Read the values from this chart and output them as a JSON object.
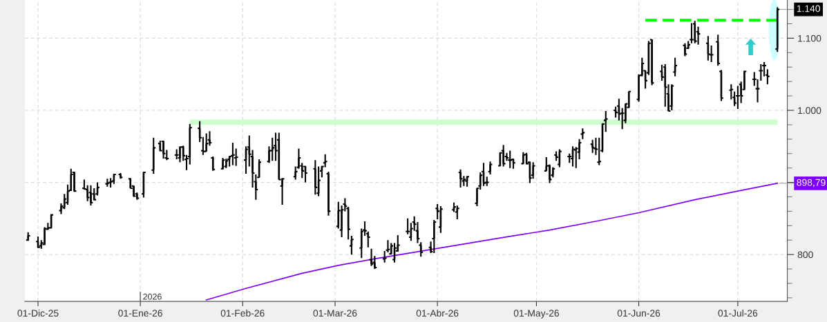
{
  "chart_data": {
    "type": "candlestick",
    "x": [
      "2025-11-28",
      "2025-12-01",
      "2025-12-02",
      "2025-12-03",
      "2025-12-04",
      "2025-12-05",
      "2025-12-08",
      "2025-12-09",
      "2025-12-10",
      "2025-12-11",
      "2025-12-12",
      "2025-12-15",
      "2025-12-16",
      "2025-12-17",
      "2025-12-18",
      "2025-12-19",
      "2025-12-22",
      "2025-12-23",
      "2025-12-24",
      "2025-12-26",
      "2025-12-29",
      "2025-12-30",
      "2025-12-31",
      "2026-01-02",
      "2026-01-05",
      "2026-01-07",
      "2026-01-08",
      "2026-01-09",
      "2026-01-12",
      "2026-01-13",
      "2026-01-14",
      "2026-01-15",
      "2026-01-16",
      "2026-01-19",
      "2026-01-20",
      "2026-01-21",
      "2026-01-22",
      "2026-01-23",
      "2026-01-26",
      "2026-01-27",
      "2026-01-28",
      "2026-01-29",
      "2026-01-30",
      "2026-02-02",
      "2026-02-03",
      "2026-02-04",
      "2026-02-05",
      "2026-02-06",
      "2026-02-09",
      "2026-02-10",
      "2026-02-11",
      "2026-02-12",
      "2026-02-13",
      "2026-02-17",
      "2026-02-18",
      "2026-02-19",
      "2026-02-20",
      "2026-02-23",
      "2026-02-24",
      "2026-02-25",
      "2026-02-26",
      "2026-02-27",
      "2026-03-02",
      "2026-03-03",
      "2026-03-04",
      "2026-03-05",
      "2026-03-06",
      "2026-03-09",
      "2026-03-10",
      "2026-03-11",
      "2026-03-12",
      "2026-03-13",
      "2026-03-16",
      "2026-03-17",
      "2026-03-18",
      "2026-03-19",
      "2026-03-20",
      "2026-03-23",
      "2026-03-24",
      "2026-03-25",
      "2026-03-26",
      "2026-03-27",
      "2026-03-30",
      "2026-03-31",
      "2026-04-01",
      "2026-04-02",
      "2026-04-06",
      "2026-04-07",
      "2026-04-08",
      "2026-04-09",
      "2026-04-10",
      "2026-04-13",
      "2026-04-14",
      "2026-04-15",
      "2026-04-16",
      "2026-04-17",
      "2026-04-20",
      "2026-04-21",
      "2026-04-22",
      "2026-04-23",
      "2026-04-24",
      "2026-04-27",
      "2026-04-28",
      "2026-04-29",
      "2026-04-30",
      "2026-05-04",
      "2026-05-05",
      "2026-05-06",
      "2026-05-07",
      "2026-05-08",
      "2026-05-11",
      "2026-05-12",
      "2026-05-13",
      "2026-05-14",
      "2026-05-15",
      "2026-05-18",
      "2026-05-19",
      "2026-05-20",
      "2026-05-21",
      "2026-05-22",
      "2026-05-25",
      "2026-05-26",
      "2026-05-27",
      "2026-05-28",
      "2026-05-29",
      "2026-06-01",
      "2026-06-02",
      "2026-06-03",
      "2026-06-04",
      "2026-06-05",
      "2026-06-08",
      "2026-06-09",
      "2026-06-10",
      "2026-06-11",
      "2026-06-12",
      "2026-06-15",
      "2026-06-16",
      "2026-06-17",
      "2026-06-18",
      "2026-06-19",
      "2026-06-22",
      "2026-06-23",
      "2026-06-25",
      "2026-06-26",
      "2026-06-29",
      "2026-06-30",
      "2026-07-01",
      "2026-07-02",
      "2026-07-03",
      "2026-07-06",
      "2026-07-07",
      "2026-07-08",
      "2026-07-09",
      "2026-07-10",
      "2026-07-13"
    ],
    "ohlc": [
      [
        820,
        831,
        819,
        826
      ],
      [
        818,
        825,
        809,
        810
      ],
      [
        812,
        820,
        808,
        816
      ],
      [
        814,
        838,
        813,
        836
      ],
      [
        835,
        844,
        834,
        837
      ],
      [
        837,
        856,
        836,
        855
      ],
      [
        861,
        871,
        856,
        867
      ],
      [
        865,
        884,
        863,
        877
      ],
      [
        872,
        897,
        869,
        888
      ],
      [
        889,
        919,
        888,
        911
      ],
      [
        914,
        915,
        887,
        888
      ],
      [
        892,
        904,
        890,
        891
      ],
      [
        890,
        896,
        874,
        879
      ],
      [
        886,
        896,
        868,
        872
      ],
      [
        884,
        892,
        875,
        876
      ],
      [
        884,
        900,
        882,
        893
      ],
      [
        898,
        905,
        894,
        899
      ],
      [
        900,
        906,
        893,
        901
      ],
      [
        902,
        912,
        898,
        911
      ],
      [
        911,
        913,
        905,
        907
      ],
      [
        905,
        906,
        892,
        892
      ],
      [
        895,
        895,
        880,
        881
      ],
      [
        884,
        886,
        876,
        878
      ],
      [
        884,
        915,
        879,
        914
      ],
      [
        917,
        962,
        912,
        948
      ],
      [
        954,
        958,
        943,
        944
      ],
      [
        957,
        958,
        933,
        940
      ],
      [
        934,
        945,
        931,
        933
      ],
      [
        938,
        946,
        932,
        938
      ],
      [
        934,
        950,
        928,
        949
      ],
      [
        949,
        951,
        930,
        937
      ],
      [
        932,
        938,
        917,
        933
      ],
      [
        936,
        981,
        925,
        976
      ],
      [
        975,
        985,
        956,
        962
      ],
      [
        944,
        963,
        938,
        943
      ],
      [
        943,
        968,
        943,
        954
      ],
      [
        959,
        971,
        951,
        955
      ],
      [
        934,
        936,
        916,
        918
      ],
      [
        919,
        934,
        918,
        931
      ],
      [
        922,
        933,
        920,
        930
      ],
      [
        932,
        937,
        922,
        936
      ],
      [
        937,
        955,
        924,
        938
      ],
      [
        934,
        947,
        923,
        935
      ],
      [
        931,
        950,
        912,
        946
      ],
      [
        949,
        965,
        922,
        939
      ],
      [
        936,
        945,
        893,
        913
      ],
      [
        901,
        911,
        876,
        890
      ],
      [
        907,
        932,
        907,
        928
      ],
      [
        929,
        950,
        927,
        944
      ],
      [
        944,
        962,
        930,
        948
      ],
      [
        951,
        969,
        930,
        944
      ],
      [
        959,
        969,
        904,
        904
      ],
      [
        895,
        906,
        869,
        905
      ],
      [
        908,
        922,
        904,
        915
      ],
      [
        921,
        947,
        919,
        934
      ],
      [
        923,
        927,
        906,
        916
      ],
      [
        922,
        923,
        900,
        913
      ],
      [
        919,
        931,
        883,
        893
      ],
      [
        885,
        922,
        881,
        903
      ],
      [
        916,
        923,
        907,
        922
      ],
      [
        927,
        939,
        921,
        929
      ],
      [
        912,
        915,
        854,
        860
      ],
      [
        839,
        873,
        836,
        861
      ],
      [
        834,
        868,
        824,
        862
      ],
      [
        870,
        878,
        860,
        867
      ],
      [
        864,
        866,
        821,
        835
      ],
      [
        812,
        826,
        800,
        821
      ],
      [
        809,
        836,
        795,
        832
      ],
      [
        834,
        846,
        826,
        833
      ],
      [
        829,
        832,
        810,
        824
      ],
      [
        793,
        808,
        784,
        787
      ],
      [
        789,
        798,
        780,
        782
      ],
      [
        794,
        805,
        789,
        795
      ],
      [
        806,
        820,
        803,
        807
      ],
      [
        801,
        816,
        800,
        812
      ],
      [
        793,
        816,
        789,
        809
      ],
      [
        805,
        827,
        804,
        813
      ],
      [
        832,
        850,
        828,
        832
      ],
      [
        824,
        844,
        819,
        836
      ],
      [
        845,
        853,
        833,
        842
      ],
      [
        833,
        845,
        816,
        822
      ],
      [
        813,
        817,
        797,
        803
      ],
      [
        810,
        818,
        802,
        804
      ],
      [
        822,
        848,
        802,
        845
      ],
      [
        864,
        870,
        849,
        860
      ],
      [
        838,
        867,
        830,
        863
      ],
      [
        862,
        872,
        859,
        866
      ],
      [
        859,
        868,
        849,
        864
      ],
      [
        914,
        918,
        893,
        905
      ],
      [
        902,
        909,
        895,
        904
      ],
      [
        902,
        909,
        894,
        908
      ],
      [
        871,
        892,
        867,
        892
      ],
      [
        895,
        914,
        890,
        910
      ],
      [
        915,
        927,
        895,
        899
      ],
      [
        900,
        908,
        895,
        900
      ],
      [
        915,
        929,
        911,
        925
      ],
      [
        923,
        942,
        923,
        941
      ],
      [
        944,
        952,
        922,
        926
      ],
      [
        936,
        941,
        930,
        934
      ],
      [
        931,
        944,
        920,
        931
      ],
      [
        932,
        933,
        919,
        927
      ],
      [
        926,
        942,
        926,
        938
      ],
      [
        939,
        941,
        925,
        926
      ],
      [
        928,
        929,
        899,
        906
      ],
      [
        910,
        928,
        905,
        923
      ],
      [
        916,
        935,
        916,
        923
      ],
      [
        923,
        925,
        899,
        904
      ],
      [
        910,
        921,
        907,
        919
      ],
      [
        938,
        943,
        930,
        935
      ],
      [
        925,
        946,
        921,
        943
      ],
      [
        936,
        940,
        927,
        936
      ],
      [
        933,
        950,
        922,
        946
      ],
      [
        945,
        949,
        920,
        947
      ],
      [
        942,
        960,
        932,
        955
      ],
      [
        967,
        975,
        960,
        969
      ],
      [
        953,
        959,
        941,
        948
      ],
      [
        947,
        962,
        938,
        946
      ],
      [
        928,
        962,
        924,
        929
      ],
      [
        944,
        982,
        942,
        981
      ],
      [
        986,
        999,
        970,
        988
      ],
      [
        1000,
        1005,
        990,
        997
      ],
      [
        1006,
        1016,
        986,
        995
      ],
      [
        996,
        1003,
        974,
        996
      ],
      [
        986,
        1009,
        982,
        1009
      ],
      [
        1004,
        1026,
        1003,
        1026
      ],
      [
        1015,
        1050,
        1012,
        1048
      ],
      [
        1049,
        1073,
        1047,
        1065
      ],
      [
        1055,
        1055,
        1030,
        1041
      ],
      [
        1052,
        1096,
        1049,
        1093
      ],
      [
        1098,
        1098,
        1035,
        1038
      ],
      [
        1054,
        1063,
        1041,
        1046
      ],
      [
        1060,
        1064,
        1005,
        1032
      ],
      [
        1023,
        1036,
        999,
        999
      ],
      [
        1006,
        1036,
        1000,
        1034
      ],
      [
        1053,
        1073,
        1047,
        1062
      ],
      [
        1090,
        1093,
        1075,
        1078
      ],
      [
        1086,
        1096,
        1085,
        1091
      ],
      [
        1098,
        1121,
        1093,
        1098
      ],
      [
        1120,
        1124,
        1093,
        1096
      ],
      [
        1109,
        1116,
        1091,
        1106
      ],
      [
        1093,
        1103,
        1069,
        1078
      ],
      [
        1077,
        1090,
        1067,
        1077
      ],
      [
        1095,
        1105,
        1062,
        1065
      ],
      [
        1054,
        1056,
        1013,
        1017
      ],
      [
        1028,
        1036,
        1015,
        1029
      ],
      [
        1018,
        1026,
        1006,
        1010
      ],
      [
        1020,
        1034,
        1002,
        1020
      ],
      [
        1036,
        1040,
        1010,
        1020
      ],
      [
        1029,
        1055,
        1028,
        1054
      ],
      [
        1043,
        1053,
        1034,
        1043
      ],
      [
        1030,
        1043,
        1011,
        1030
      ],
      [
        1055,
        1064,
        1041,
        1055
      ],
      [
        1062,
        1067,
        1047,
        1062
      ],
      [
        1049,
        1057,
        1036,
        1047
      ],
      [
        1085,
        1143,
        1081,
        1140
      ]
    ],
    "color": "#000000",
    "series": [
      {
        "type": "line",
        "color": "#8000ff",
        "x": [
          "2026-01-21",
          "2026-02-02",
          "2026-02-19",
          "2026-03-02",
          "2026-03-13",
          "2026-03-30",
          "2026-04-20",
          "2026-05-05",
          "2026-05-20",
          "2026-06-01",
          "2026-06-18",
          "2026-07-01",
          "2026-07-13"
        ],
        "values": [
          737,
          753,
          774,
          785,
          794,
          807,
          823,
          834,
          847,
          858,
          876,
          888,
          898.79
        ]
      },
      {
        "type": "line",
        "color": "#00ff00",
        "line_style": "dashed",
        "x": [
          "2026-06-03",
          "2026-07-13"
        ],
        "values": [
          1125,
          1125
        ]
      },
      {
        "type": "line",
        "color": "#ccffcc",
        "x": [
          "2026-01-16",
          "2026-07-13"
        ],
        "values": [
          null,
          null
        ],
        "lower": [
          980,
          980
        ],
        "upper": [
          987,
          987
        ]
      }
    ],
    "annotations": [
      {
        "text": "1.140",
        "x": "2026-07-13",
        "y": 1140
      },
      {
        "text": "898,79",
        "x": "2026-07-13",
        "y": 898.79
      },
      "2026"
    ],
    "xlim": [
      "2025-11-27",
      "2026-07-16"
    ],
    "xticks": [
      {
        "value": "2025-12-01",
        "label": "01-Dic-25"
      },
      {
        "value": "2026-01-01",
        "label": "01-Ene-26"
      },
      {
        "value": "2026-02-01",
        "label": "01-Feb-26"
      },
      {
        "value": "2026-03-01",
        "label": "01-Mar-26"
      },
      {
        "value": "2026-04-01",
        "label": "01-Abr-26"
      },
      {
        "value": "2026-05-01",
        "label": "01-May-26"
      },
      {
        "value": "2026-06-01",
        "label": "01-Jun-26"
      },
      {
        "value": "2026-07-01",
        "label": "01-Jul-26"
      }
    ],
    "ylim": [
      735,
      1153
    ],
    "yticks": [
      800,
      {
        "value": 900,
        "label": null
      },
      {
        "value": 1000,
        "label": "1.000"
      },
      {
        "value": 1100,
        "label": "1.100"
      }
    ],
    "grid": true
  }
}
